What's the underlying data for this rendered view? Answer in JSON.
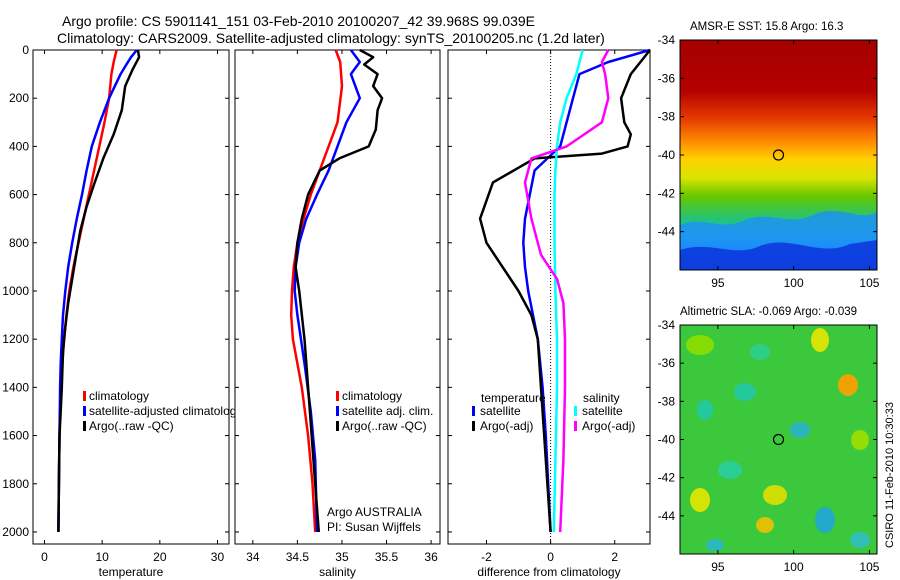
{
  "header": {
    "title_line1": "Argo profile: CS 5901141_151 03-Feb-2010 20100207_42 39.968S 99.039E",
    "title_line2": "Climatology: CARS2009. Satellite-adjusted climatology: synTS_20100205.nc (1.2d later)"
  },
  "credit": "CSIRO 11-Feb-2010 10:30:33",
  "chart_data": [
    {
      "type": "line",
      "id": "temperature",
      "xlabel": "temperature",
      "ylabel": "",
      "xlim": [
        -2,
        32
      ],
      "ylim": [
        2050,
        0
      ],
      "xticks": [
        0,
        10,
        20,
        30
      ],
      "yticks": [
        0,
        200,
        400,
        600,
        800,
        1000,
        1200,
        1400,
        1600,
        1800,
        2000
      ],
      "legend": [
        "climatology",
        "satellite-adjusted climatolog",
        "Argo(..raw -QC)"
      ],
      "legend_position": "lower-right",
      "series": [
        {
          "name": "climatology",
          "color": "#ff0000",
          "x": [
            12.5,
            12.0,
            11.6,
            11.2,
            10.4,
            9.5,
            8.6,
            7.7,
            6.8,
            5.9,
            5.0,
            4.3,
            3.8,
            3.4,
            3.1,
            2.9,
            2.7,
            2.6,
            2.5,
            2.4
          ],
          "y": [
            0,
            50,
            100,
            200,
            300,
            400,
            500,
            600,
            700,
            800,
            900,
            1000,
            1100,
            1200,
            1300,
            1400,
            1500,
            1600,
            1800,
            2000
          ]
        },
        {
          "name": "satellite-adjusted climatolog",
          "color": "#0000ff",
          "x": [
            16.0,
            15.0,
            14.2,
            13.2,
            11.2,
            9.6,
            8.2,
            7.3,
            6.5,
            5.6,
            4.8,
            4.1,
            3.6,
            3.2,
            3.0,
            2.8,
            2.7,
            2.6,
            2.5,
            2.4
          ],
          "y": [
            0,
            30,
            60,
            100,
            200,
            300,
            400,
            500,
            600,
            700,
            800,
            900,
            1000,
            1100,
            1200,
            1300,
            1400,
            1600,
            1800,
            2000
          ]
        },
        {
          "name": "Argo(..raw -QC)",
          "color": "#000000",
          "x": [
            16.2,
            16.4,
            15.3,
            14.0,
            13.4,
            12.0,
            10.2,
            8.7,
            7.3,
            6.2,
            5.5,
            4.8,
            4.1,
            3.6,
            3.2,
            3.0,
            2.8,
            2.6,
            2.5,
            2.4
          ],
          "y": [
            0,
            30,
            80,
            150,
            250,
            350,
            450,
            550,
            650,
            750,
            850,
            950,
            1050,
            1150,
            1250,
            1400,
            1500,
            1600,
            1800,
            2000
          ]
        }
      ]
    },
    {
      "type": "line",
      "id": "salinity",
      "xlabel": "salinity",
      "ylabel": "",
      "xlim": [
        33.8,
        36.1
      ],
      "ylim": [
        2050,
        0
      ],
      "xticks": [
        34,
        34.5,
        35,
        35.5,
        36
      ],
      "legend": [
        "climatology",
        "satellite adj. clim.",
        "Argo(..raw -QC)"
      ],
      "legend_position": "lower-right",
      "annotation": [
        "Argo AUSTRALIA",
        "PI: Susan Wijffels"
      ],
      "series": [
        {
          "name": "climatology",
          "color": "#ff0000",
          "x": [
            34.93,
            34.98,
            35.0,
            34.95,
            34.85,
            34.75,
            34.65,
            34.57,
            34.5,
            34.46,
            34.44,
            34.43,
            34.45,
            34.55,
            34.62,
            34.67,
            34.7
          ],
          "y": [
            0,
            50,
            150,
            300,
            400,
            500,
            600,
            700,
            800,
            900,
            1000,
            1100,
            1200,
            1400,
            1600,
            1800,
            2000
          ]
        },
        {
          "name": "satellite adj. clim.",
          "color": "#0000ff",
          "x": [
            35.1,
            35.2,
            35.1,
            35.2,
            35.05,
            34.95,
            34.85,
            34.72,
            34.6,
            34.52,
            34.48,
            34.47,
            34.5,
            34.58,
            34.65,
            34.7,
            34.72
          ],
          "y": [
            0,
            50,
            100,
            200,
            300,
            400,
            500,
            600,
            700,
            800,
            900,
            1000,
            1100,
            1300,
            1500,
            1700,
            2000
          ]
        },
        {
          "name": "Argo(..raw -QC)",
          "color": "#000000",
          "x": [
            35.2,
            35.35,
            35.25,
            35.4,
            35.35,
            35.45,
            35.4,
            35.38,
            35.3,
            34.97,
            34.75,
            34.62,
            34.55,
            34.5,
            34.48,
            34.52,
            34.58,
            34.64,
            34.7,
            34.74
          ],
          "y": [
            0,
            30,
            60,
            100,
            150,
            200,
            250,
            330,
            400,
            450,
            500,
            600,
            700,
            800,
            900,
            1000,
            1200,
            1500,
            1800,
            2000
          ]
        }
      ]
    },
    {
      "type": "line",
      "id": "difference",
      "xlabel": "difference from climatology",
      "ylabel": "",
      "xlim": [
        -3.2,
        3.1
      ],
      "ylim": [
        2050,
        0
      ],
      "xticks": [
        -2,
        0,
        2
      ],
      "legend": [
        "temperature",
        "satellite",
        "Argo(-adj)",
        "salinity",
        "satellite",
        "Argo(-adj)"
      ],
      "legend_position": "lower-middle",
      "series": [
        {
          "name": "satellite",
          "color": "#0000ff",
          "x": [
            3.1,
            1.8,
            0.9,
            0.7,
            0.5,
            0.3,
            -0.1,
            -0.5,
            -0.65,
            -0.8,
            -0.85,
            -0.8,
            -0.7,
            -0.55,
            -0.4,
            -0.25,
            -0.15,
            0.0
          ],
          "y": [
            0,
            50,
            100,
            200,
            300,
            400,
            450,
            500,
            600,
            700,
            800,
            900,
            1000,
            1100,
            1200,
            1400,
            1600,
            2000
          ]
        },
        {
          "name": "Argo(-adj)",
          "color": "#000000",
          "x": [
            3.1,
            2.5,
            2.2,
            2.3,
            2.5,
            2.4,
            1.6,
            -0.5,
            -1.8,
            -2.2,
            -2.0,
            -1.5,
            -1.0,
            -0.6,
            -0.4,
            -0.3,
            -0.2,
            -0.1,
            0.0
          ],
          "y": [
            0,
            100,
            200,
            300,
            350,
            400,
            430,
            450,
            550,
            700,
            800,
            900,
            1000,
            1100,
            1200,
            1400,
            1600,
            1800,
            2000
          ]
        },
        {
          "name": "satellite",
          "color": "#00ffff",
          "x": [
            1.0,
            0.9,
            0.8,
            0.5,
            0.3,
            0.2,
            0.15,
            0.12,
            0.12,
            0.15,
            0.2,
            0.2,
            0.15,
            0.1
          ],
          "y": [
            0,
            50,
            100,
            200,
            300,
            400,
            500,
            600,
            800,
            1000,
            1200,
            1400,
            1700,
            2000
          ]
        },
        {
          "name": "Argo(-adj)",
          "color": "#ff00ff",
          "x": [
            1.8,
            1.6,
            1.7,
            1.8,
            1.6,
            0.5,
            -0.6,
            -0.8,
            -0.6,
            -0.3,
            0.2,
            0.4,
            0.45,
            0.45,
            0.4,
            0.3
          ],
          "y": [
            0,
            50,
            100,
            200,
            300,
            400,
            450,
            550,
            700,
            850,
            950,
            1050,
            1200,
            1400,
            1700,
            2000
          ]
        }
      ]
    },
    {
      "type": "heatmap",
      "id": "sst-map",
      "title": "AMSR-E SST: 15.8 Argo: 16.3",
      "xlim": [
        92.5,
        105.5
      ],
      "ylim": [
        -46,
        -34
      ],
      "xticks": [
        95,
        100,
        105
      ],
      "yticks": [
        -34,
        -36,
        -38,
        -40,
        -42,
        -44
      ],
      "marker": {
        "lon": 99.0,
        "lat": -40.0
      }
    },
    {
      "type": "heatmap",
      "id": "sla-map",
      "title": "Altimetric SLA: -0.069 Argo: -0.039",
      "xlim": [
        92.5,
        105.5
      ],
      "ylim": [
        -46,
        -34
      ],
      "xticks": [
        95,
        100,
        105
      ],
      "yticks": [
        -34,
        -36,
        -38,
        -40,
        -42,
        -44
      ],
      "marker": {
        "lon": 99.0,
        "lat": -40.0
      }
    }
  ]
}
